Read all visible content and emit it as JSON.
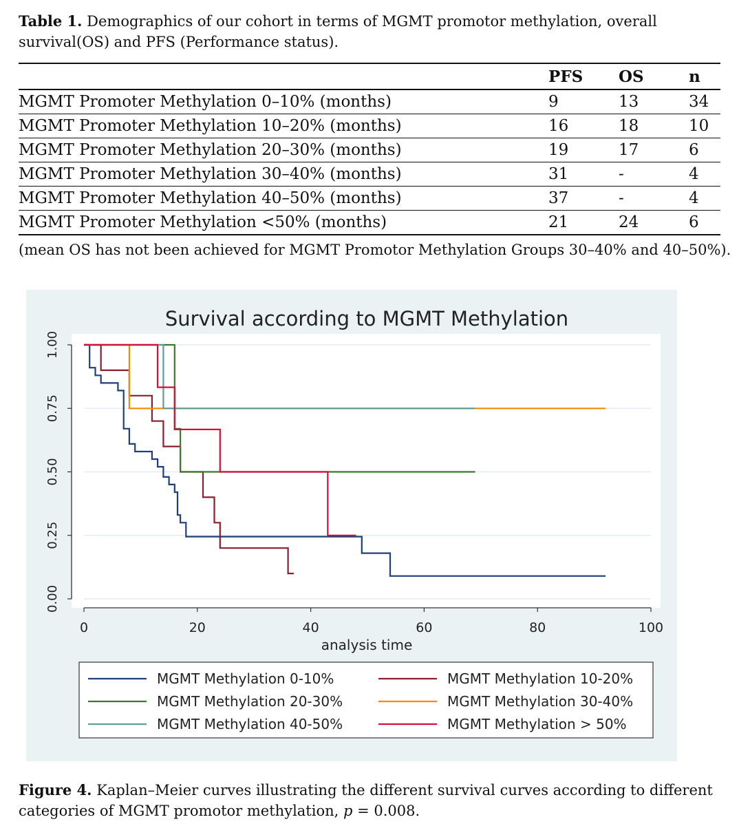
{
  "table_caption": {
    "label": "Table 1.",
    "text": "Demographics of our cohort in terms of MGMT promotor methylation, overall survival(OS) and PFS (Performance status)."
  },
  "table": {
    "headers": [
      "",
      "PFS",
      "OS",
      "n"
    ],
    "rows": [
      [
        "MGMT Promoter Methylation 0–10% (months)",
        "9",
        "13",
        "34"
      ],
      [
        "MGMT Promoter Methylation 10–20% (months)",
        "16",
        "18",
        "10"
      ],
      [
        "MGMT Promoter Methylation 20–30% (months)",
        "19",
        "17",
        "6"
      ],
      [
        "MGMT Promoter Methylation 30–40% (months)",
        "31",
        "-",
        "4"
      ],
      [
        "MGMT Promoter Methylation 40–50% (months)",
        "37",
        "-",
        "4"
      ],
      [
        "MGMT Promoter Methylation <50% (months)",
        "21",
        "24",
        "6"
      ]
    ],
    "note": "(mean OS has not been achieved for MGMT Promotor Methylation Groups 30–40% and 40–50%)."
  },
  "figure_caption": {
    "label": "Figure 4.",
    "text_before": "Kaplan–Meier curves illustrating the different survival curves according to different categories of MGMT promotor methylation, ",
    "p_symbol": "p",
    "p_value": " = 0.008."
  },
  "chart_data": {
    "type": "line",
    "subtype": "kaplan-meier step",
    "title": "Survival according to MGMT Methylation",
    "xlabel": "analysis time",
    "ylabel": "",
    "xlim": [
      0,
      100
    ],
    "ylim": [
      0,
      1
    ],
    "xticks": [
      "0",
      "20",
      "40",
      "60",
      "80",
      "100"
    ],
    "yticks": [
      "0.00",
      "0.25",
      "0.50",
      "0.75",
      "1.00"
    ],
    "grid": true,
    "legend_position": "bottom",
    "series": [
      {
        "name": "MGMT Methylation 0-10%",
        "color": "#1f3f7a",
        "points": [
          [
            0,
            1
          ],
          [
            1,
            1
          ],
          [
            1,
            0.91
          ],
          [
            2,
            0.91
          ],
          [
            2,
            0.88
          ],
          [
            3,
            0.88
          ],
          [
            3,
            0.85
          ],
          [
            6,
            0.85
          ],
          [
            6,
            0.82
          ],
          [
            7,
            0.82
          ],
          [
            7,
            0.67
          ],
          [
            8,
            0.67
          ],
          [
            8,
            0.61
          ],
          [
            9,
            0.61
          ],
          [
            9,
            0.58
          ],
          [
            12,
            0.58
          ],
          [
            12,
            0.55
          ],
          [
            13,
            0.55
          ],
          [
            13,
            0.52
          ],
          [
            14,
            0.52
          ],
          [
            14,
            0.48
          ],
          [
            15,
            0.48
          ],
          [
            15,
            0.45
          ],
          [
            16,
            0.45
          ],
          [
            16,
            0.42
          ],
          [
            16.5,
            0.42
          ],
          [
            16.5,
            0.33
          ],
          [
            17,
            0.33
          ],
          [
            17,
            0.3
          ],
          [
            18,
            0.3
          ],
          [
            18,
            0.245
          ],
          [
            49,
            0.245
          ],
          [
            49,
            0.18
          ],
          [
            54,
            0.18
          ],
          [
            54,
            0.09
          ],
          [
            92,
            0.09
          ]
        ]
      },
      {
        "name": "MGMT Methylation 10-20%",
        "color": "#8b1e2b",
        "points": [
          [
            0,
            1
          ],
          [
            3,
            1
          ],
          [
            3,
            0.9
          ],
          [
            8,
            0.9
          ],
          [
            8,
            0.8
          ],
          [
            12,
            0.8
          ],
          [
            12,
            0.7
          ],
          [
            14,
            0.7
          ],
          [
            14,
            0.6
          ],
          [
            17,
            0.6
          ],
          [
            17,
            0.5
          ],
          [
            21,
            0.5
          ],
          [
            21,
            0.4
          ],
          [
            23,
            0.4
          ],
          [
            23,
            0.3
          ],
          [
            24,
            0.3
          ],
          [
            24,
            0.2
          ],
          [
            36,
            0.2
          ],
          [
            36,
            0.1
          ],
          [
            37,
            0.1
          ]
        ]
      },
      {
        "name": "MGMT Methylation 20-30%",
        "color": "#3a7a2a",
        "points": [
          [
            0,
            1
          ],
          [
            16,
            1
          ],
          [
            16,
            0.67
          ],
          [
            17,
            0.67
          ],
          [
            17,
            0.5
          ],
          [
            69,
            0.5
          ]
        ]
      },
      {
        "name": "MGMT Methylation 30-40%",
        "color": "#f08c00",
        "points": [
          [
            0,
            1
          ],
          [
            8,
            1
          ],
          [
            8,
            0.75
          ],
          [
            92,
            0.75
          ]
        ]
      },
      {
        "name": "MGMT Methylation 40-50%",
        "color": "#5f9b9b",
        "points": [
          [
            0,
            1
          ],
          [
            14,
            1
          ],
          [
            14,
            0.75
          ],
          [
            69,
            0.75
          ]
        ]
      },
      {
        "name": "MGMT Methylation > 50%",
        "color": "#d4103a",
        "points": [
          [
            0,
            1
          ],
          [
            13,
            1
          ],
          [
            13,
            0.833
          ],
          [
            16,
            0.833
          ],
          [
            16,
            0.667
          ],
          [
            24,
            0.667
          ],
          [
            24,
            0.5
          ],
          [
            43,
            0.5
          ],
          [
            43,
            0.25
          ],
          [
            48,
            0.25
          ]
        ]
      }
    ]
  }
}
